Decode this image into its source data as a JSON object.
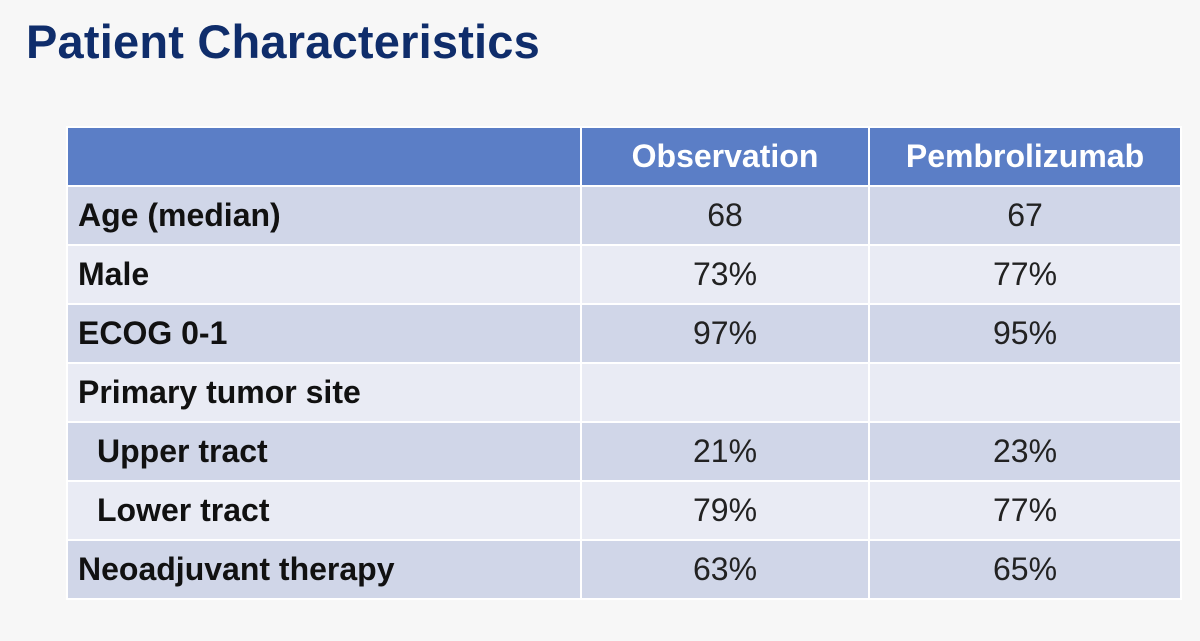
{
  "slide": {
    "title": "Patient Characteristics"
  },
  "table": {
    "headers": [
      "",
      "Observation",
      "Pembrolizumab"
    ],
    "rows": [
      {
        "label": "Age (median)",
        "observation": "68",
        "pembrolizumab": "67",
        "indent": false
      },
      {
        "label": "Male",
        "observation": "73%",
        "pembrolizumab": "77%",
        "indent": false
      },
      {
        "label": "ECOG 0-1",
        "observation": "97%",
        "pembrolizumab": "95%",
        "indent": false
      },
      {
        "label": "Primary tumor site",
        "observation": "",
        "pembrolizumab": "",
        "indent": false
      },
      {
        "label": "Upper tract",
        "observation": "21%",
        "pembrolizumab": "23%",
        "indent": true
      },
      {
        "label": "Lower tract",
        "observation": "79%",
        "pembrolizumab": "77%",
        "indent": true
      },
      {
        "label": "Neoadjuvant therapy",
        "observation": "63%",
        "pembrolizumab": "65%",
        "indent": false
      }
    ]
  },
  "colors": {
    "title": "#0f2d6b",
    "header_bg": "#5b7ec6",
    "row_dark": "#d0d6e8",
    "row_light": "#e9ebf4"
  }
}
